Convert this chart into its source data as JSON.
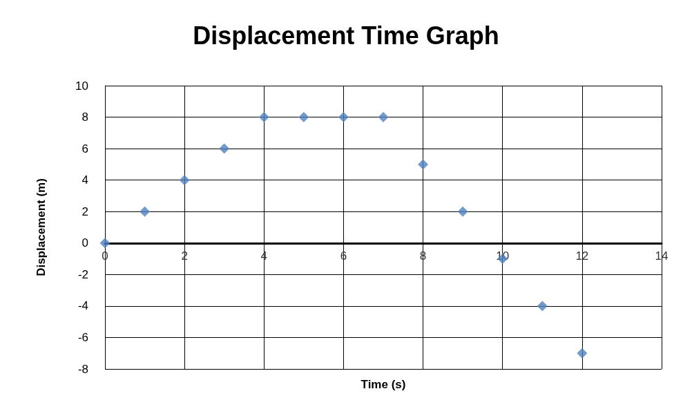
{
  "chart_data": {
    "type": "scatter",
    "title": "Displacement Time Graph",
    "xlabel": "Time (s)",
    "ylabel": "Displacement (m)",
    "x": [
      0,
      1,
      2,
      3,
      4,
      5,
      6,
      7,
      8,
      9,
      10,
      11,
      12
    ],
    "series": [
      {
        "color": "#4f81bd",
        "values": [
          0,
          2,
          4,
          6,
          8,
          8,
          8,
          8,
          5,
          2,
          -1,
          -4,
          -7
        ]
      }
    ],
    "xlim": [
      0,
      14
    ],
    "xticks": [
      0,
      2,
      4,
      6,
      8,
      10,
      12,
      14
    ],
    "ylim": [
      -8,
      10
    ],
    "yticks": [
      -8,
      -6,
      -4,
      -2,
      0,
      2,
      4,
      6,
      8,
      10
    ],
    "grid": true,
    "marker": "diamond"
  }
}
